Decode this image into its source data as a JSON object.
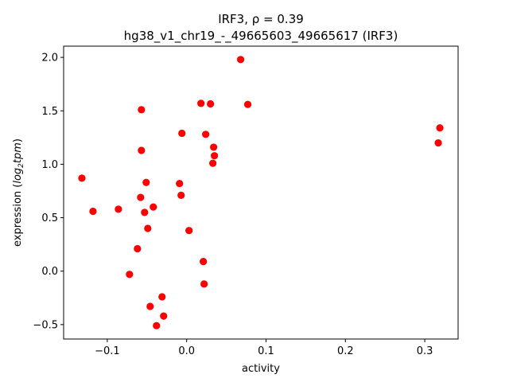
{
  "chart_data": {
    "type": "scatter",
    "title_line1": "IRF3, ρ = 0.39",
    "title_line2": "hg38_v1_chr19_-_49665603_49665617 (IRF3)",
    "xlabel": "activity",
    "ylabel_prefix": "expression (",
    "ylabel_log": "log",
    "ylabel_sub": "2",
    "ylabel_tpm": "tpm",
    "ylabel_suffix": ")",
    "xlim": [
      -0.155,
      0.342
    ],
    "ylim": [
      -0.635,
      2.105
    ],
    "x_ticks": [
      -0.1,
      0.0,
      0.1,
      0.2,
      0.3
    ],
    "x_tick_labels": [
      "−0.1",
      "0.0",
      "0.1",
      "0.2",
      "0.3"
    ],
    "y_ticks": [
      -0.5,
      0.0,
      0.5,
      1.0,
      1.5,
      2.0
    ],
    "y_tick_labels": [
      "−0.5",
      "0.0",
      "0.5",
      "1.0",
      "1.5",
      "2.0"
    ],
    "grid": false,
    "marker_color": "#ff0000",
    "points": [
      {
        "x": 0.068,
        "y": 1.98
      },
      {
        "x": 0.018,
        "y": 1.57
      },
      {
        "x": 0.03,
        "y": 1.565
      },
      {
        "x": 0.077,
        "y": 1.56
      },
      {
        "x": -0.057,
        "y": 1.51
      },
      {
        "x": 0.319,
        "y": 1.34
      },
      {
        "x": -0.006,
        "y": 1.29
      },
      {
        "x": 0.024,
        "y": 1.28
      },
      {
        "x": 0.317,
        "y": 1.2
      },
      {
        "x": 0.034,
        "y": 1.16
      },
      {
        "x": -0.057,
        "y": 1.13
      },
      {
        "x": 0.035,
        "y": 1.08
      },
      {
        "x": 0.033,
        "y": 1.01
      },
      {
        "x": -0.132,
        "y": 0.87
      },
      {
        "x": -0.051,
        "y": 0.83
      },
      {
        "x": -0.009,
        "y": 0.82
      },
      {
        "x": -0.007,
        "y": 0.71
      },
      {
        "x": -0.058,
        "y": 0.69
      },
      {
        "x": -0.042,
        "y": 0.6
      },
      {
        "x": -0.086,
        "y": 0.58
      },
      {
        "x": -0.118,
        "y": 0.56
      },
      {
        "x": -0.053,
        "y": 0.55
      },
      {
        "x": -0.049,
        "y": 0.4
      },
      {
        "x": 0.003,
        "y": 0.38
      },
      {
        "x": -0.062,
        "y": 0.21
      },
      {
        "x": 0.021,
        "y": 0.09
      },
      {
        "x": -0.072,
        "y": -0.03
      },
      {
        "x": 0.022,
        "y": -0.12
      },
      {
        "x": -0.031,
        "y": -0.24
      },
      {
        "x": -0.046,
        "y": -0.33
      },
      {
        "x": -0.029,
        "y": -0.42
      },
      {
        "x": -0.038,
        "y": -0.51
      }
    ]
  }
}
